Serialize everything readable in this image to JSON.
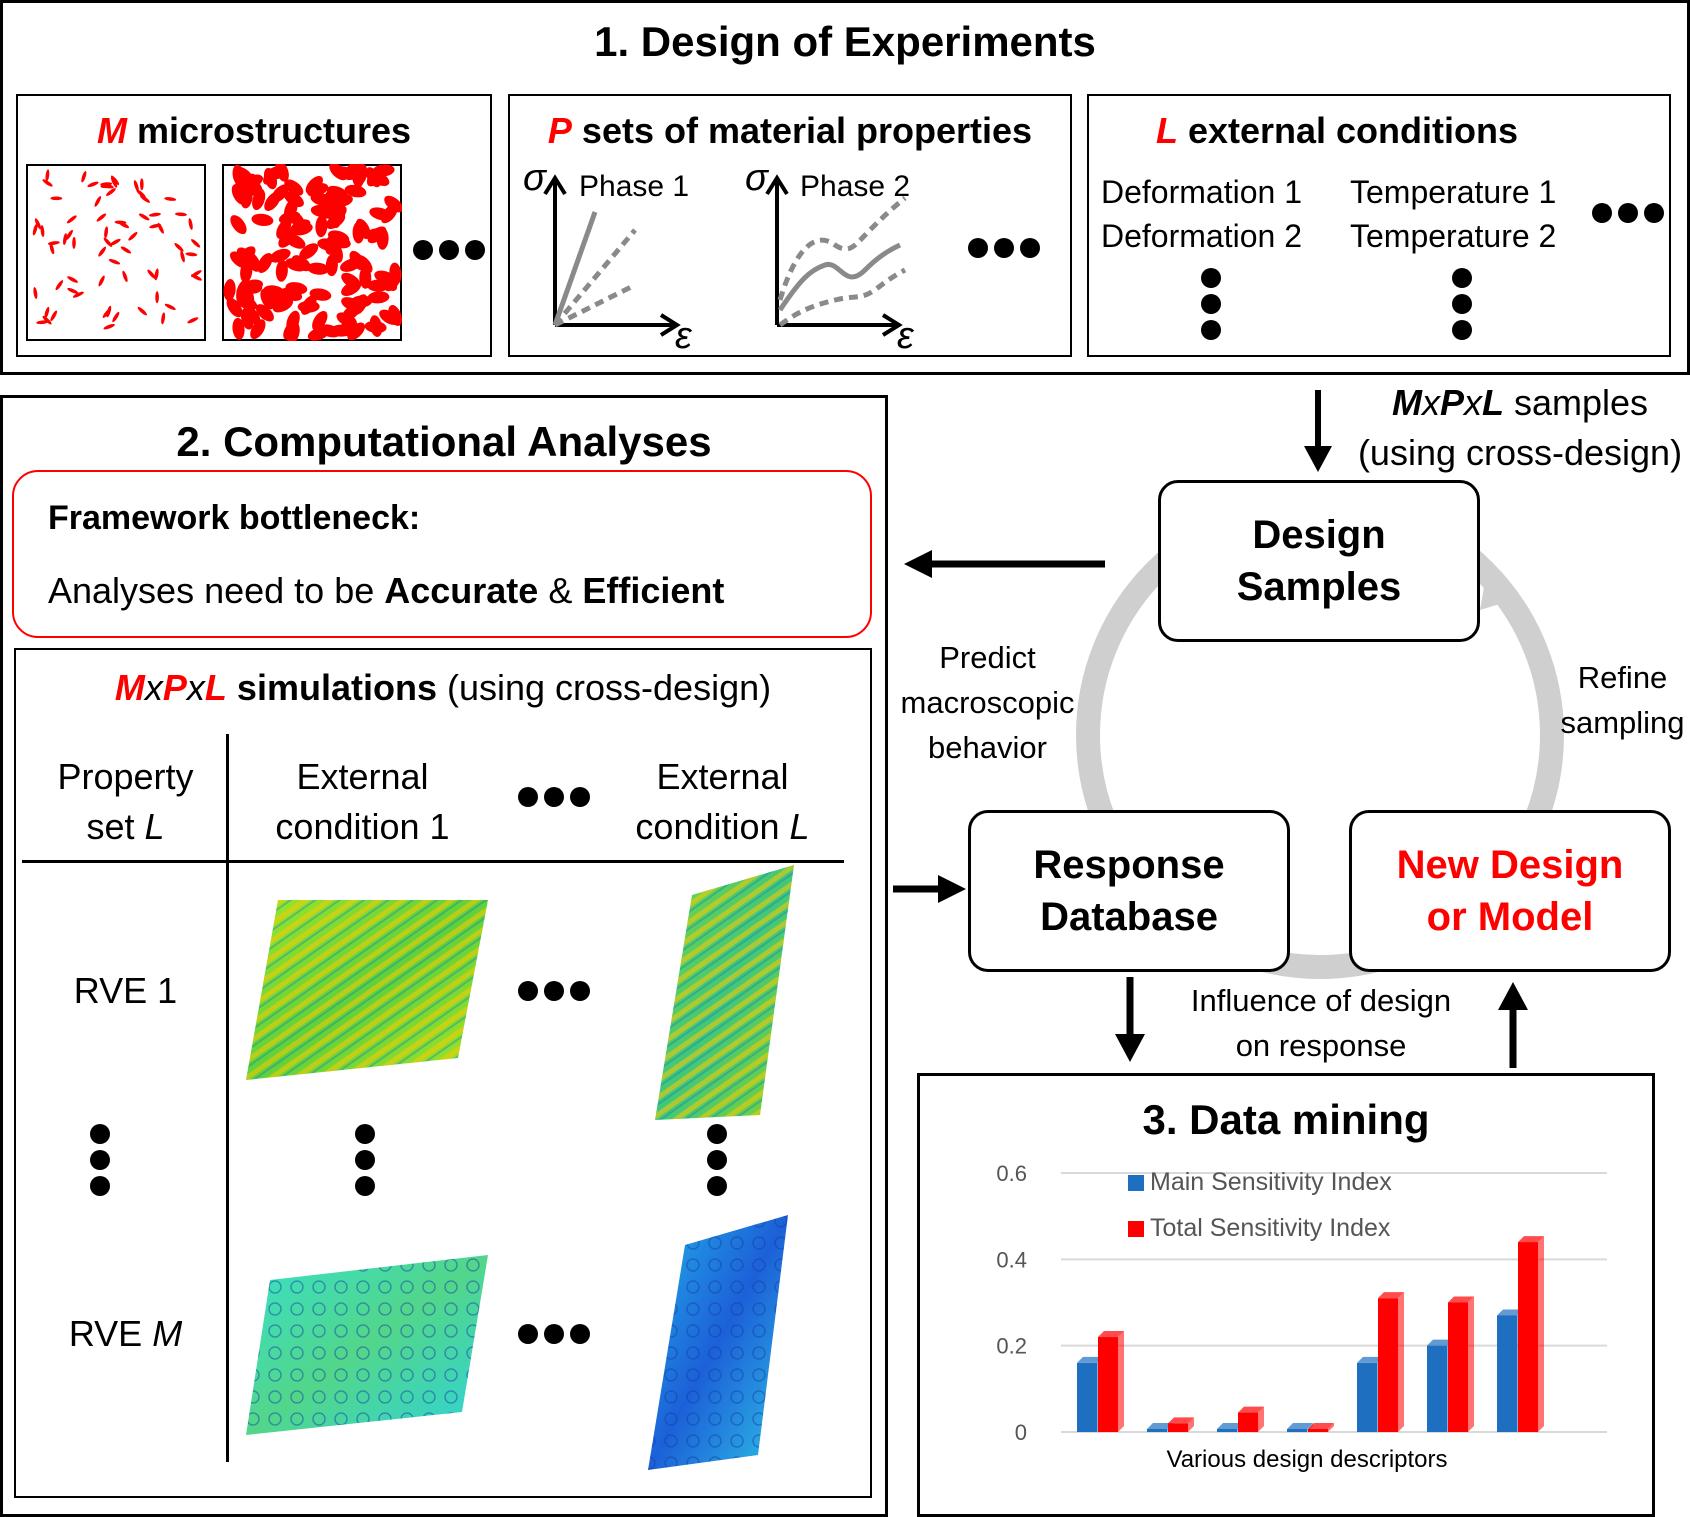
{
  "doe": {
    "title": "1. Design of Experiments",
    "micro": {
      "var": "M",
      "label": " microstructures"
    },
    "props": {
      "var": "P",
      "label": " sets of material properties",
      "phase1": "Phase 1",
      "phase2": "Phase 2",
      "sigma": "σ",
      "eps": "ε"
    },
    "ext": {
      "var": "L",
      "label": " external conditions",
      "def1": "Deformation 1",
      "def2": "Deformation 2",
      "temp1": "Temperature 1",
      "temp2": "Temperature 2"
    }
  },
  "samples_note": {
    "m": "M",
    "x1": "x",
    "p": "P",
    "x2": "x",
    "l": "L",
    "rest": " samples",
    "line2": "(using cross-design)"
  },
  "ca": {
    "title": "2. Computational Analyses",
    "bottleneck_title": "Framework bottleneck:",
    "bottleneck_text_a": "Analyses need to be ",
    "accurate": "Accurate",
    "amp": " & ",
    "efficient": "Efficient",
    "sim": {
      "m": "M",
      "x1": "x",
      "p": "P",
      "x2": "x",
      "l": "L",
      "bold": " simulations",
      "rest": " (using cross-design)"
    },
    "headers": {
      "prop_a": "Property",
      "prop_b": "set ",
      "prop_var": "L",
      "ext1_a": "External",
      "ext1_b": "condition 1",
      "extl_a": "External",
      "extl_b": "condition ",
      "extl_var": "L"
    },
    "rows": {
      "rve1": "RVE 1",
      "rvem_a": "RVE ",
      "rvem_var": "M"
    }
  },
  "cycle": {
    "design_samples": [
      "Design",
      "Samples"
    ],
    "response_db": [
      "Response",
      "Database"
    ],
    "new_design": [
      "New Design",
      "or Model"
    ],
    "predict": [
      "Predict",
      "macroscopic",
      "behavior"
    ],
    "refine": [
      "Refine",
      "sampling"
    ],
    "influence": [
      "Influence of design",
      "on response"
    ]
  },
  "dm": {
    "title": "3. Data mining"
  },
  "colors": {
    "accent_red": "#ff0000",
    "main_blue": "#1f6fc1",
    "total_red": "#ff0000",
    "cycle_gray": "#cfcfcf"
  },
  "chart_data": {
    "type": "bar",
    "xlabel": "Various design descriptors",
    "ylim": [
      0,
      0.6
    ],
    "yticks": [
      "0",
      "0.2",
      "0.4",
      "0.6"
    ],
    "legend_position": "top-left",
    "series": [
      {
        "name": "Main Sensitivity Index",
        "color": "#1f6fc1",
        "values": [
          0.16,
          0.0,
          0.0,
          0.0,
          0.16,
          0.2,
          0.27
        ]
      },
      {
        "name": "Total Sensitivity Index",
        "color": "#ff0000",
        "values": [
          0.22,
          0.02,
          0.045,
          0.0,
          0.31,
          0.3,
          0.44
        ]
      }
    ]
  }
}
